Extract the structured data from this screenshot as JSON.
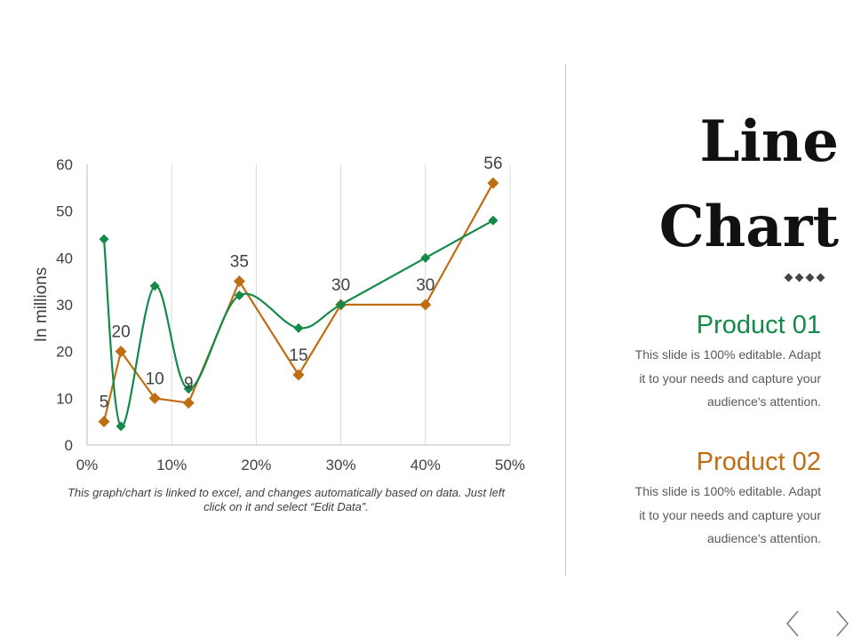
{
  "chart_data": {
    "type": "line",
    "ylabel": "In millions",
    "xlabel": "",
    "xlim": [
      0,
      50
    ],
    "ylim": [
      0,
      60
    ],
    "x_ticks": [
      "0%",
      "10%",
      "20%",
      "30%",
      "40%",
      "50%"
    ],
    "y_ticks": [
      "0",
      "10",
      "20",
      "30",
      "40",
      "50",
      "60"
    ],
    "grid": "vertical",
    "series": [
      {
        "name": "Product 01",
        "color": "#138a47",
        "smooth": true,
        "x": [
          2,
          4,
          8,
          12,
          18,
          25,
          30,
          40,
          48
        ],
        "y": [
          44,
          4,
          34,
          12,
          32,
          25,
          30,
          40,
          48
        ]
      },
      {
        "name": "Product 02",
        "color": "#bf6d12",
        "smooth": false,
        "x": [
          2,
          4,
          8,
          12,
          18,
          25,
          30,
          40,
          48
        ],
        "y": [
          5,
          20,
          10,
          9,
          35,
          15,
          30,
          30,
          56
        ],
        "labels": [
          "5",
          "20",
          "10",
          "9",
          "35",
          "15",
          "30",
          "30",
          "56"
        ]
      }
    ]
  },
  "chart_note": "This graph/chart is linked to excel, and changes automatically based on data. Just left click on it and select “Edit Data”.",
  "title": {
    "line1": "Line",
    "line2": "Chart"
  },
  "products": [
    {
      "title": "Product 01",
      "color": "#138a47",
      "desc_lines": [
        "This slide is 100% editable. Adapt",
        "it to your needs and capture your",
        "audience's attention."
      ]
    },
    {
      "title": "Product 02",
      "color": "#bf6d12",
      "desc_lines": [
        "This slide is 100% editable. Adapt",
        "it to your needs and capture your",
        "audience's attention."
      ]
    }
  ],
  "nav": {
    "prev_icon": "chevron-left-icon",
    "next_icon": "chevron-right-icon"
  }
}
